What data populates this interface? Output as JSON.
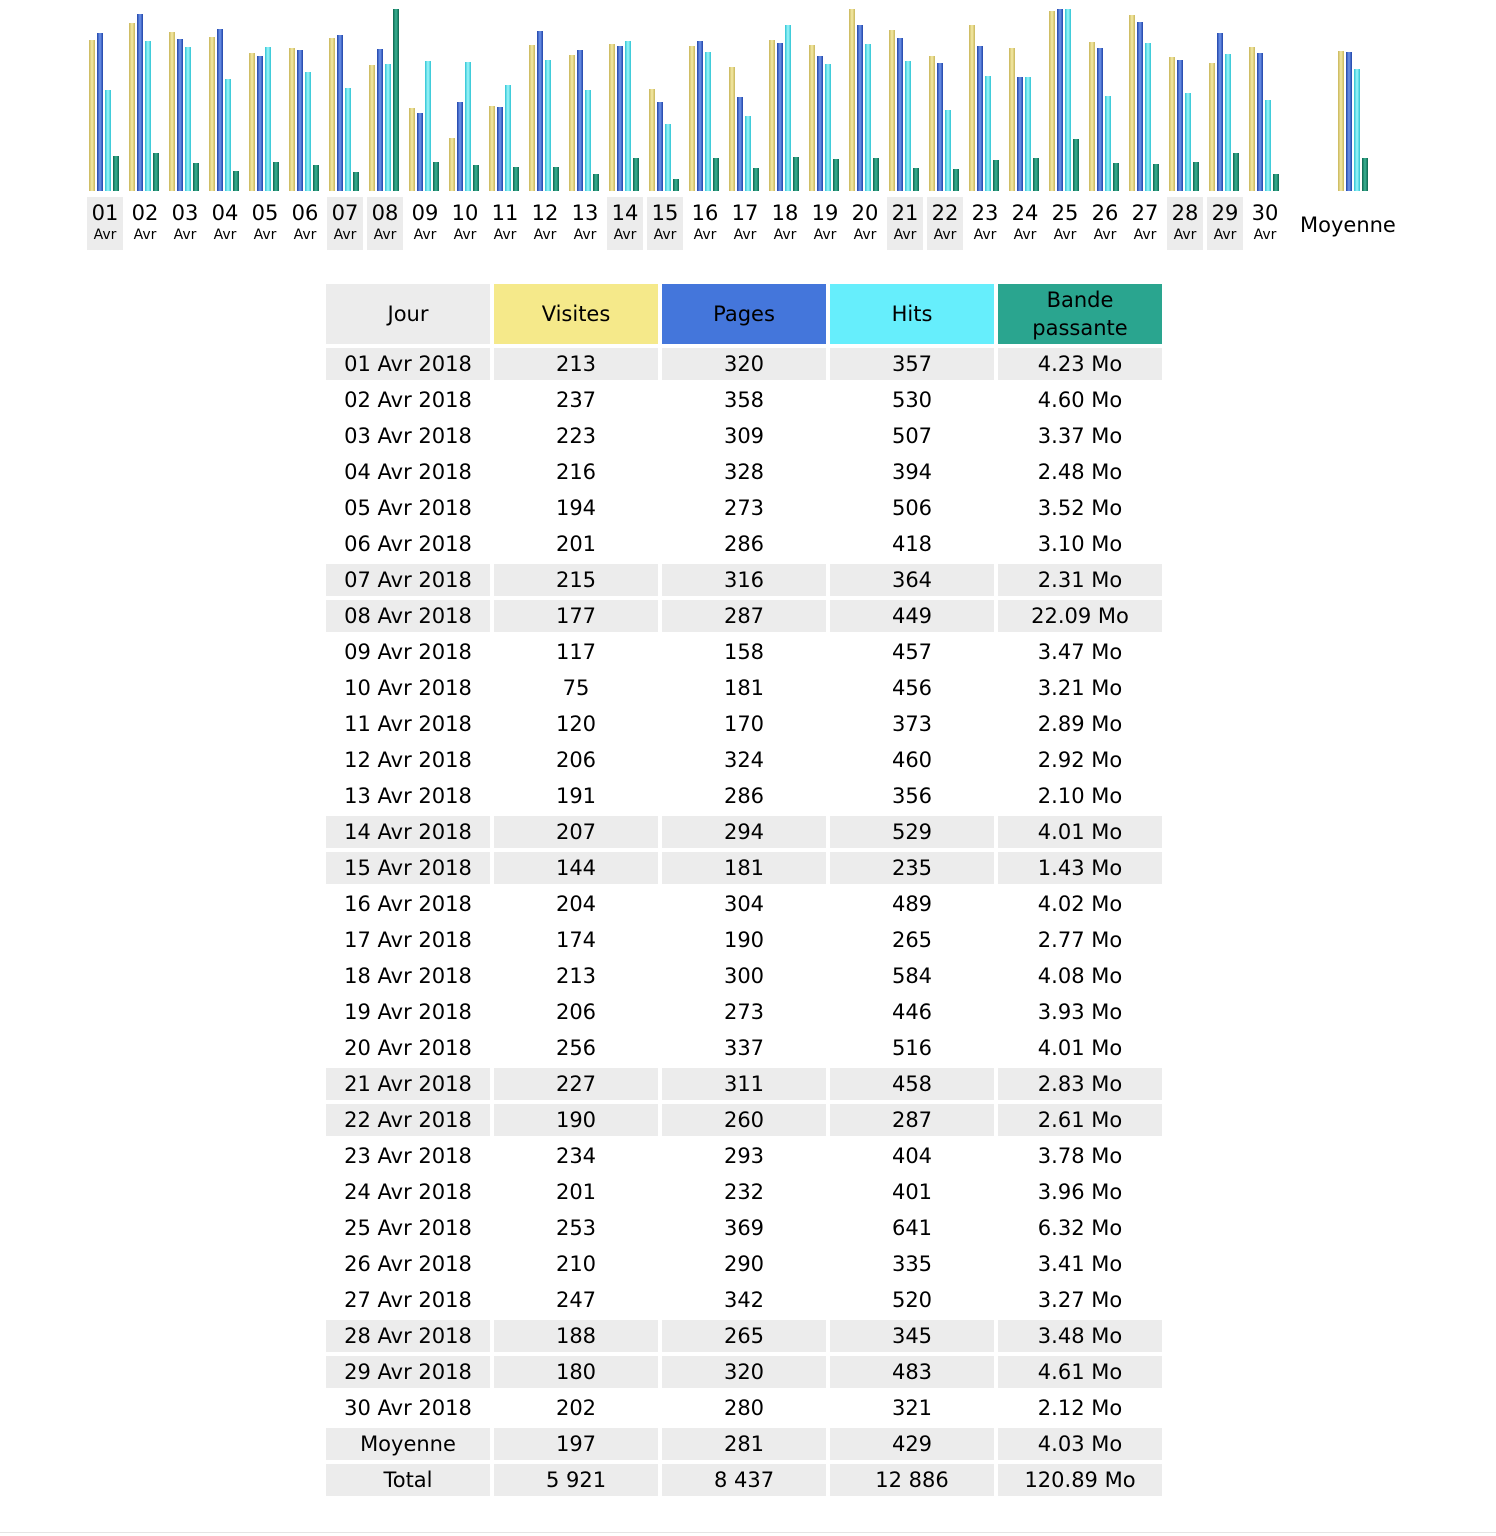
{
  "chart_data": {
    "type": "bar",
    "series": [
      {
        "name": "Visites",
        "color": "#e8d878",
        "values": [
          213,
          237,
          223,
          216,
          194,
          201,
          215,
          177,
          117,
          75,
          120,
          206,
          191,
          207,
          144,
          204,
          174,
          213,
          206,
          256,
          227,
          190,
          234,
          201,
          253,
          210,
          247,
          188,
          180,
          202
        ]
      },
      {
        "name": "Pages",
        "color": "#3b68d2",
        "values": [
          320,
          358,
          309,
          328,
          273,
          286,
          316,
          287,
          158,
          181,
          170,
          324,
          286,
          294,
          181,
          304,
          190,
          300,
          273,
          337,
          311,
          260,
          293,
          232,
          369,
          290,
          342,
          265,
          320,
          280
        ]
      },
      {
        "name": "Hits",
        "color": "#4fe6f2",
        "values": [
          357,
          530,
          507,
          394,
          506,
          418,
          364,
          449,
          457,
          456,
          373,
          460,
          356,
          529,
          235,
          489,
          265,
          584,
          446,
          516,
          458,
          287,
          404,
          401,
          641,
          335,
          520,
          345,
          483,
          321
        ]
      },
      {
        "name": "Bande passante",
        "color": "#1f8a6e",
        "values": [
          4.23,
          4.6,
          3.37,
          2.48,
          3.52,
          3.1,
          2.31,
          22.09,
          3.47,
          3.21,
          2.89,
          2.92,
          2.1,
          4.01,
          1.43,
          4.02,
          2.77,
          4.08,
          3.93,
          4.01,
          2.83,
          2.61,
          3.78,
          3.96,
          6.32,
          3.41,
          3.27,
          3.48,
          4.61,
          2.12
        ]
      }
    ],
    "average": {
      "label": "Moyenne",
      "values": [
        197,
        281,
        429,
        4.03
      ]
    },
    "categories": [
      {
        "day": "01",
        "month": "Avr",
        "weekend": true
      },
      {
        "day": "02",
        "month": "Avr",
        "weekend": false
      },
      {
        "day": "03",
        "month": "Avr",
        "weekend": false
      },
      {
        "day": "04",
        "month": "Avr",
        "weekend": false
      },
      {
        "day": "05",
        "month": "Avr",
        "weekend": false
      },
      {
        "day": "06",
        "month": "Avr",
        "weekend": false
      },
      {
        "day": "07",
        "month": "Avr",
        "weekend": true
      },
      {
        "day": "08",
        "month": "Avr",
        "weekend": true
      },
      {
        "day": "09",
        "month": "Avr",
        "weekend": false
      },
      {
        "day": "10",
        "month": "Avr",
        "weekend": false
      },
      {
        "day": "11",
        "month": "Avr",
        "weekend": false
      },
      {
        "day": "12",
        "month": "Avr",
        "weekend": false
      },
      {
        "day": "13",
        "month": "Avr",
        "weekend": false
      },
      {
        "day": "14",
        "month": "Avr",
        "weekend": true
      },
      {
        "day": "15",
        "month": "Avr",
        "weekend": true
      },
      {
        "day": "16",
        "month": "Avr",
        "weekend": false
      },
      {
        "day": "17",
        "month": "Avr",
        "weekend": false
      },
      {
        "day": "18",
        "month": "Avr",
        "weekend": false
      },
      {
        "day": "19",
        "month": "Avr",
        "weekend": false
      },
      {
        "day": "20",
        "month": "Avr",
        "weekend": false
      },
      {
        "day": "21",
        "month": "Avr",
        "weekend": true
      },
      {
        "day": "22",
        "month": "Avr",
        "weekend": true
      },
      {
        "day": "23",
        "month": "Avr",
        "weekend": false
      },
      {
        "day": "24",
        "month": "Avr",
        "weekend": false
      },
      {
        "day": "25",
        "month": "Avr",
        "weekend": false
      },
      {
        "day": "26",
        "month": "Avr",
        "weekend": false
      },
      {
        "day": "27",
        "month": "Avr",
        "weekend": false
      },
      {
        "day": "28",
        "month": "Avr",
        "weekend": true
      },
      {
        "day": "29",
        "month": "Avr",
        "weekend": true
      },
      {
        "day": "30",
        "month": "Avr",
        "weekend": false
      }
    ]
  },
  "table": {
    "headers": [
      "Jour",
      "Visites",
      "Pages",
      "Hits",
      "Bande passante"
    ],
    "rows": [
      {
        "cells": [
          "01 Avr 2018",
          "213",
          "320",
          "357",
          "4.23 Mo"
        ],
        "weekend": true
      },
      {
        "cells": [
          "02 Avr 2018",
          "237",
          "358",
          "530",
          "4.60 Mo"
        ],
        "weekend": false
      },
      {
        "cells": [
          "03 Avr 2018",
          "223",
          "309",
          "507",
          "3.37 Mo"
        ],
        "weekend": false
      },
      {
        "cells": [
          "04 Avr 2018",
          "216",
          "328",
          "394",
          "2.48 Mo"
        ],
        "weekend": false
      },
      {
        "cells": [
          "05 Avr 2018",
          "194",
          "273",
          "506",
          "3.52 Mo"
        ],
        "weekend": false
      },
      {
        "cells": [
          "06 Avr 2018",
          "201",
          "286",
          "418",
          "3.10 Mo"
        ],
        "weekend": false
      },
      {
        "cells": [
          "07 Avr 2018",
          "215",
          "316",
          "364",
          "2.31 Mo"
        ],
        "weekend": true
      },
      {
        "cells": [
          "08 Avr 2018",
          "177",
          "287",
          "449",
          "22.09 Mo"
        ],
        "weekend": true
      },
      {
        "cells": [
          "09 Avr 2018",
          "117",
          "158",
          "457",
          "3.47 Mo"
        ],
        "weekend": false
      },
      {
        "cells": [
          "10 Avr 2018",
          "75",
          "181",
          "456",
          "3.21 Mo"
        ],
        "weekend": false
      },
      {
        "cells": [
          "11 Avr 2018",
          "120",
          "170",
          "373",
          "2.89 Mo"
        ],
        "weekend": false
      },
      {
        "cells": [
          "12 Avr 2018",
          "206",
          "324",
          "460",
          "2.92 Mo"
        ],
        "weekend": false
      },
      {
        "cells": [
          "13 Avr 2018",
          "191",
          "286",
          "356",
          "2.10 Mo"
        ],
        "weekend": false
      },
      {
        "cells": [
          "14 Avr 2018",
          "207",
          "294",
          "529",
          "4.01 Mo"
        ],
        "weekend": true
      },
      {
        "cells": [
          "15 Avr 2018",
          "144",
          "181",
          "235",
          "1.43 Mo"
        ],
        "weekend": true
      },
      {
        "cells": [
          "16 Avr 2018",
          "204",
          "304",
          "489",
          "4.02 Mo"
        ],
        "weekend": false
      },
      {
        "cells": [
          "17 Avr 2018",
          "174",
          "190",
          "265",
          "2.77 Mo"
        ],
        "weekend": false
      },
      {
        "cells": [
          "18 Avr 2018",
          "213",
          "300",
          "584",
          "4.08 Mo"
        ],
        "weekend": false
      },
      {
        "cells": [
          "19 Avr 2018",
          "206",
          "273",
          "446",
          "3.93 Mo"
        ],
        "weekend": false
      },
      {
        "cells": [
          "20 Avr 2018",
          "256",
          "337",
          "516",
          "4.01 Mo"
        ],
        "weekend": false
      },
      {
        "cells": [
          "21 Avr 2018",
          "227",
          "311",
          "458",
          "2.83 Mo"
        ],
        "weekend": true
      },
      {
        "cells": [
          "22 Avr 2018",
          "190",
          "260",
          "287",
          "2.61 Mo"
        ],
        "weekend": true
      },
      {
        "cells": [
          "23 Avr 2018",
          "234",
          "293",
          "404",
          "3.78 Mo"
        ],
        "weekend": false
      },
      {
        "cells": [
          "24 Avr 2018",
          "201",
          "232",
          "401",
          "3.96 Mo"
        ],
        "weekend": false
      },
      {
        "cells": [
          "25 Avr 2018",
          "253",
          "369",
          "641",
          "6.32 Mo"
        ],
        "weekend": false
      },
      {
        "cells": [
          "26 Avr 2018",
          "210",
          "290",
          "335",
          "3.41 Mo"
        ],
        "weekend": false
      },
      {
        "cells": [
          "27 Avr 2018",
          "247",
          "342",
          "520",
          "3.27 Mo"
        ],
        "weekend": false
      },
      {
        "cells": [
          "28 Avr 2018",
          "188",
          "265",
          "345",
          "3.48 Mo"
        ],
        "weekend": true
      },
      {
        "cells": [
          "29 Avr 2018",
          "180",
          "320",
          "483",
          "4.61 Mo"
        ],
        "weekend": true
      },
      {
        "cells": [
          "30 Avr 2018",
          "202",
          "280",
          "321",
          "2.12 Mo"
        ],
        "weekend": false
      }
    ],
    "summary": [
      {
        "cells": [
          "Moyenne",
          "197",
          "281",
          "429",
          "4.03 Mo"
        ]
      },
      {
        "cells": [
          "Total",
          "5 921",
          "8 437",
          "12 886",
          "120.89 Mo"
        ]
      }
    ]
  }
}
